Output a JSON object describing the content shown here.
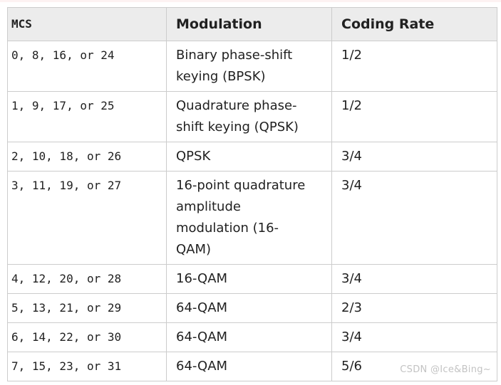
{
  "colors": {
    "page_bg": "#ffffff",
    "top_strip": "#fdf2f2",
    "border": "#cccccc",
    "header_bg": "#ececec",
    "text": "#212121",
    "watermark": "#c3c3c3"
  },
  "table": {
    "columns": [
      {
        "key": "mcs",
        "label": "MCS"
      },
      {
        "key": "modulation",
        "label": "Modulation"
      },
      {
        "key": "coding_rate",
        "label": "Coding Rate"
      }
    ],
    "rows": [
      {
        "mcs": "0, 8, 16, or 24",
        "modulation": "Binary phase-shift\nkeying (BPSK)",
        "coding_rate": "1/2"
      },
      {
        "mcs": "1, 9, 17, or 25",
        "modulation": "Quadrature phase-\nshift keying (QPSK)",
        "coding_rate": "1/2"
      },
      {
        "mcs": "2, 10, 18, or 26",
        "modulation": "QPSK",
        "coding_rate": "3/4"
      },
      {
        "mcs": "3, 11, 19, or 27",
        "modulation": "16-point quadrature\namplitude\nmodulation (16-\nQAM)",
        "coding_rate": "3/4"
      },
      {
        "mcs": "4, 12, 20, or 28",
        "modulation": "16-QAM",
        "coding_rate": "3/4"
      },
      {
        "mcs": "5, 13, 21, or 29",
        "modulation": "64-QAM",
        "coding_rate": "2/3"
      },
      {
        "mcs": "6, 14, 22, or 30",
        "modulation": "64-QAM",
        "coding_rate": "3/4"
      },
      {
        "mcs": "7, 15, 23, or 31",
        "modulation": "64-QAM",
        "coding_rate": "5/6"
      }
    ]
  },
  "watermark": {
    "text": "CSDN @Ice&Bing~"
  }
}
